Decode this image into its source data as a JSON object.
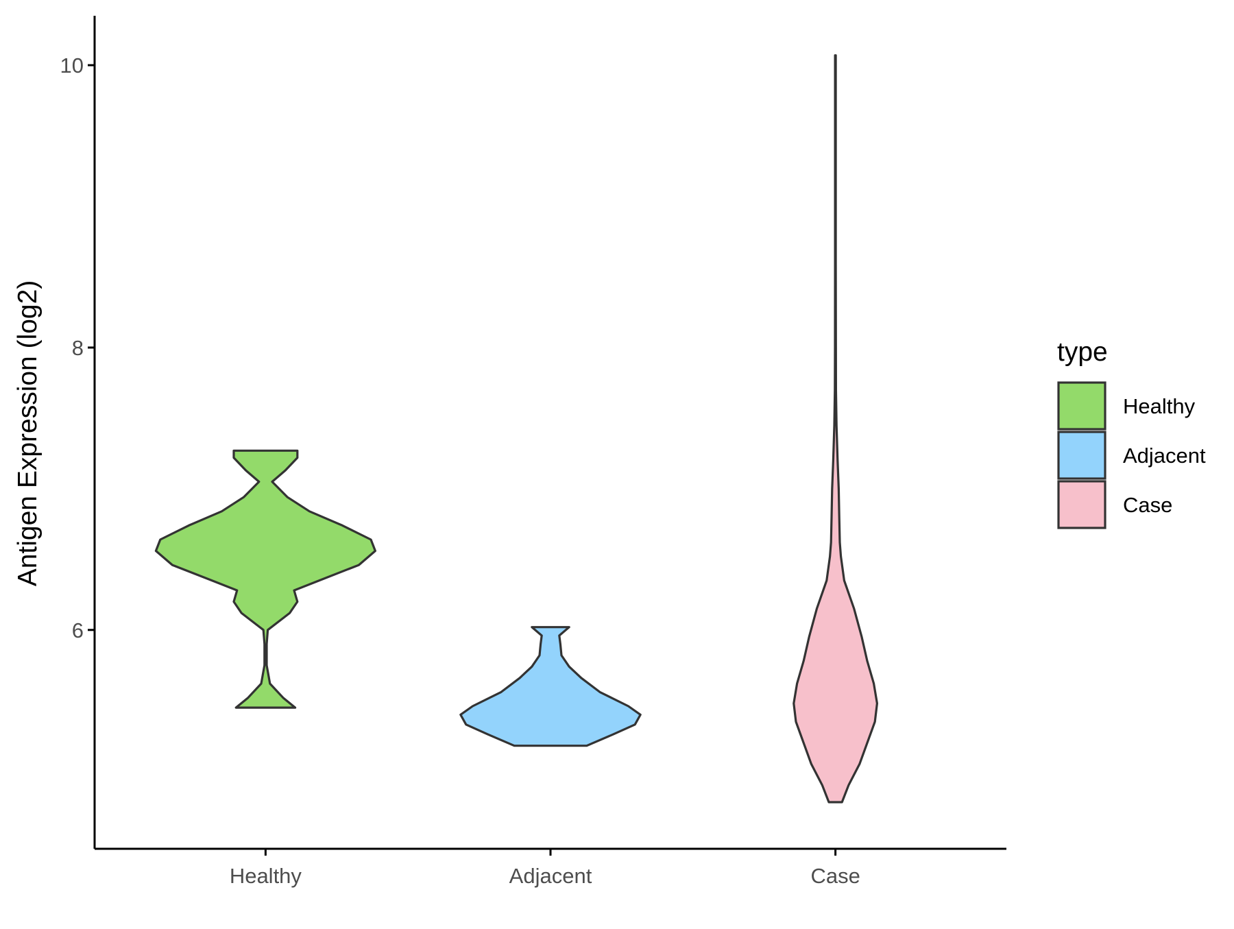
{
  "chart_data": {
    "type": "violin",
    "title": "",
    "xlabel": "",
    "ylabel": "Antigen Expression (log2)",
    "ylim": [
      4.45,
      10.35
    ],
    "yticks": [
      6,
      8,
      10
    ],
    "ytick_labels": [
      "6",
      "8",
      "10"
    ],
    "categories": [
      "Healthy",
      "Adjacent",
      "Case"
    ],
    "grid": false,
    "legend": {
      "title": "type",
      "position": "right",
      "entries": [
        "Healthy",
        "Adjacent",
        "Case"
      ]
    },
    "colors": {
      "Healthy": "#93DA6A",
      "Adjacent": "#93D3FC",
      "Case": "#F7C0CB",
      "outline": "#333333",
      "axis": "#000000",
      "tick_label": "#4D4D4D"
    },
    "series": [
      {
        "name": "Healthy",
        "min": 5.45,
        "max": 7.27,
        "density": [
          [
            5.45,
            0.27
          ],
          [
            5.52,
            0.16
          ],
          [
            5.62,
            0.04
          ],
          [
            5.75,
            0.01
          ],
          [
            5.9,
            0.01
          ],
          [
            6.0,
            0.02
          ],
          [
            6.12,
            0.22
          ],
          [
            6.2,
            0.29
          ],
          [
            6.28,
            0.26
          ],
          [
            6.36,
            0.52
          ],
          [
            6.46,
            0.85
          ],
          [
            6.56,
            1.0
          ],
          [
            6.64,
            0.96
          ],
          [
            6.74,
            0.7
          ],
          [
            6.84,
            0.4
          ],
          [
            6.94,
            0.2
          ],
          [
            7.05,
            0.06
          ],
          [
            7.13,
            0.18
          ],
          [
            7.22,
            0.29
          ],
          [
            7.27,
            0.29
          ]
        ]
      },
      {
        "name": "Adjacent",
        "min": 5.18,
        "max": 6.02,
        "density": [
          [
            5.18,
            0.33
          ],
          [
            5.26,
            0.57
          ],
          [
            5.33,
            0.77
          ],
          [
            5.4,
            0.82
          ],
          [
            5.46,
            0.71
          ],
          [
            5.56,
            0.45
          ],
          [
            5.66,
            0.28
          ],
          [
            5.74,
            0.17
          ],
          [
            5.82,
            0.1
          ],
          [
            5.9,
            0.09
          ],
          [
            5.96,
            0.08
          ],
          [
            6.02,
            0.17
          ]
        ]
      },
      {
        "name": "Case",
        "min": 4.78,
        "max": 10.07,
        "density": [
          [
            4.78,
            0.06
          ],
          [
            4.9,
            0.12
          ],
          [
            5.05,
            0.22
          ],
          [
            5.2,
            0.29
          ],
          [
            5.35,
            0.36
          ],
          [
            5.48,
            0.38
          ],
          [
            5.62,
            0.35
          ],
          [
            5.78,
            0.29
          ],
          [
            5.95,
            0.24
          ],
          [
            6.15,
            0.17
          ],
          [
            6.35,
            0.08
          ],
          [
            6.52,
            0.05
          ],
          [
            6.62,
            0.04
          ],
          [
            6.8,
            0.035
          ],
          [
            7.0,
            0.03
          ],
          [
            7.2,
            0.02
          ],
          [
            7.45,
            0.01
          ],
          [
            7.7,
            0.005
          ],
          [
            8.0,
            0.004
          ],
          [
            8.6,
            0.003
          ],
          [
            9.2,
            0.003
          ],
          [
            9.8,
            0.003
          ],
          [
            10.07,
            0.003
          ]
        ]
      }
    ]
  }
}
